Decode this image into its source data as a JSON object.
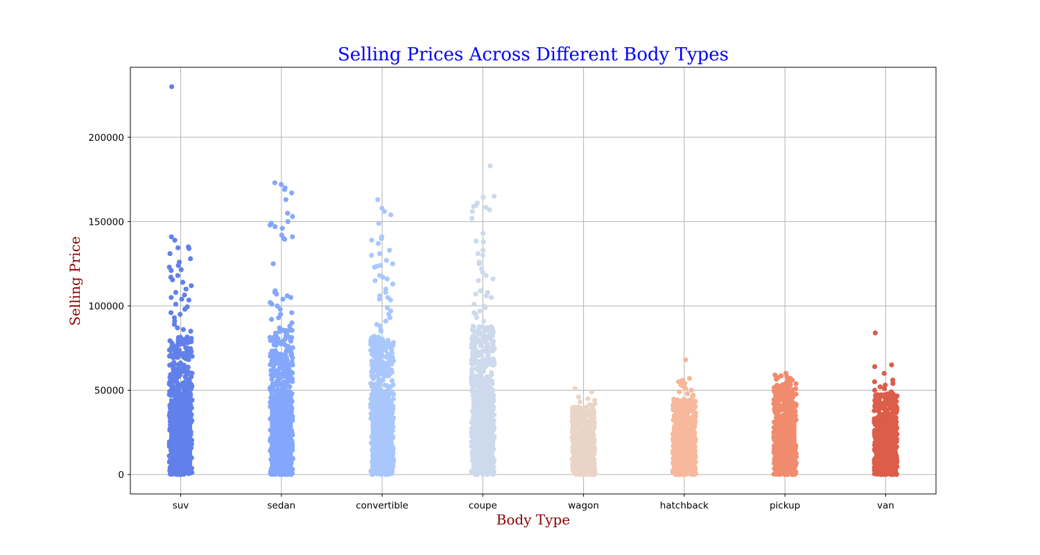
{
  "chart_data": {
    "type": "scatter",
    "subtype": "strip",
    "title": "Selling Prices Across Different Body Types",
    "xlabel": "Body Type",
    "ylabel": "Selling Price",
    "title_color": "#0000ff",
    "label_color": "#8b0000",
    "ylim": [
      -11500,
      241500
    ],
    "yticks": [
      0,
      50000,
      100000,
      150000,
      200000
    ],
    "ytick_labels": [
      "0",
      "50000",
      "100000",
      "150000",
      "200000"
    ],
    "grid": true,
    "legend": "none",
    "categories": [
      "suv",
      "sedan",
      "convertible",
      "coupe",
      "wagon",
      "hatchback",
      "pickup",
      "van"
    ],
    "series": [
      {
        "category": "suv",
        "color": "#6180e9",
        "dense_max": 82000,
        "outliers": [
          230000,
          141000,
          139000,
          135000,
          134500,
          134000,
          131000,
          128000,
          126000,
          124000,
          123000,
          121500,
          121000,
          118000,
          117000,
          115500,
          114000,
          112000,
          110000,
          108000,
          106500,
          105000,
          104000,
          103500,
          101000,
          99500,
          98000,
          96000,
          95000,
          93000,
          91000,
          89000,
          87000,
          86000,
          85000
        ]
      },
      {
        "category": "sedan",
        "color": "#84a7fc",
        "dense_max": 86000,
        "outliers": [
          173000,
          172000,
          170000,
          169000,
          167000,
          163000,
          155000,
          153000,
          150000,
          149000,
          148000,
          147000,
          146000,
          142000,
          141000,
          140000,
          139500,
          125000,
          109000,
          108000,
          107000,
          106000,
          105000,
          104000,
          102000,
          101000,
          100000,
          98000,
          96000,
          95000,
          93000,
          92000,
          90000,
          88000,
          87000
        ]
      },
      {
        "category": "convertible",
        "color": "#aac7fd",
        "dense_max": 82000,
        "outliers": [
          163000,
          158000,
          156000,
          154000,
          149000,
          141000,
          140000,
          139000,
          137000,
          133000,
          131000,
          130000,
          127000,
          125000,
          124000,
          123500,
          123000,
          118000,
          117000,
          116000,
          115000,
          113000,
          110000,
          108000,
          106000,
          105000,
          104000,
          103500,
          99000,
          97000,
          95000,
          93000,
          91000,
          89000,
          88000,
          86000,
          85000
        ]
      },
      {
        "category": "coupe",
        "color": "#cdd9ec",
        "dense_max": 88000,
        "outliers": [
          183000,
          165000,
          164500,
          161000,
          159500,
          159000,
          158500,
          157000,
          156000,
          152000,
          143000,
          138500,
          138000,
          133000,
          131000,
          130000,
          126000,
          125000,
          122000,
          120000,
          118000,
          116000,
          115000,
          109000,
          108000,
          107000,
          106000,
          105000,
          101000,
          100000,
          99000,
          97000,
          96000,
          95000,
          93000,
          91000
        ]
      },
      {
        "category": "wagon",
        "color": "#ead4c8",
        "dense_max": 40000,
        "outliers": [
          51000,
          49000,
          46000,
          45000,
          44000,
          43000,
          42000,
          41500,
          41000
        ]
      },
      {
        "category": "hatchback",
        "color": "#f7b89c",
        "dense_max": 45000,
        "outliers": [
          68000,
          57000,
          56000,
          55500,
          55000,
          54000,
          53000,
          52000,
          51000,
          50000,
          49000,
          48000,
          47000,
          46000
        ]
      },
      {
        "category": "pickup",
        "color": "#f08b6e",
        "dense_max": 54000,
        "outliers": [
          60000,
          59000,
          58500,
          58000,
          57500,
          57000,
          56500,
          56000,
          55500,
          55000
        ]
      },
      {
        "category": "van",
        "color": "#dc5d4a",
        "dense_max": 48000,
        "outliers": [
          84000,
          65000,
          64000,
          60000,
          56000,
          55000,
          54000,
          53000,
          52000,
          51000,
          50000,
          49000
        ]
      }
    ]
  }
}
